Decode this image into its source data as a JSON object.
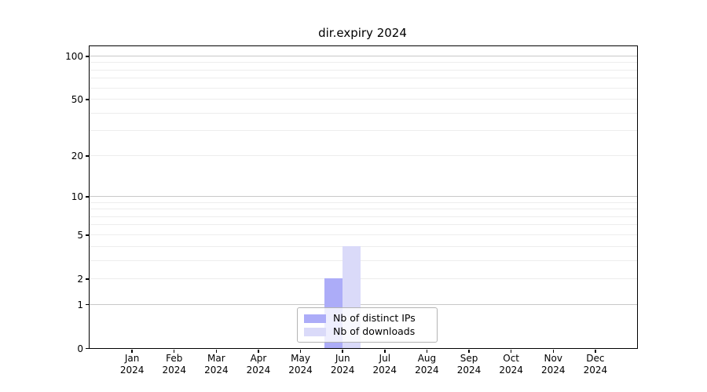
{
  "chart_data": {
    "type": "bar",
    "title": "dir.expiry 2024",
    "x_axis": {
      "months": [
        "Jan",
        "Feb",
        "Mar",
        "Apr",
        "May",
        "Jun",
        "Jul",
        "Aug",
        "Sep",
        "Oct",
        "Nov",
        "Dec"
      ],
      "year": "2024"
    },
    "y_axis": {
      "scale": "log1p",
      "ylim": [
        0,
        117
      ],
      "ticks": [
        0,
        1,
        2,
        5,
        10,
        20,
        50,
        100
      ],
      "gridlines_major": [
        1,
        10,
        100
      ],
      "gridlines_minor": [
        2,
        3,
        4,
        5,
        6,
        7,
        8,
        9,
        20,
        30,
        40,
        50,
        60,
        70,
        80,
        90
      ]
    },
    "series": [
      {
        "name": "Nb of distinct IPs",
        "color": "#acacf8",
        "values": [
          0,
          0,
          0,
          0,
          0,
          2,
          0,
          0,
          0,
          0,
          0,
          0
        ]
      },
      {
        "name": "Nb of downloads",
        "color": "#dadaf9",
        "values": [
          0,
          0,
          0,
          0,
          0,
          4,
          0,
          0,
          0,
          0,
          0,
          0
        ]
      }
    ],
    "legend": {
      "position": "lower center"
    }
  },
  "colors": {
    "background": "#ffffff",
    "grid_major": "#c8c8c8",
    "grid_minor": "#ededed",
    "spine": "#000000",
    "legend_border": "#b4b4b4",
    "text": "#000000"
  }
}
